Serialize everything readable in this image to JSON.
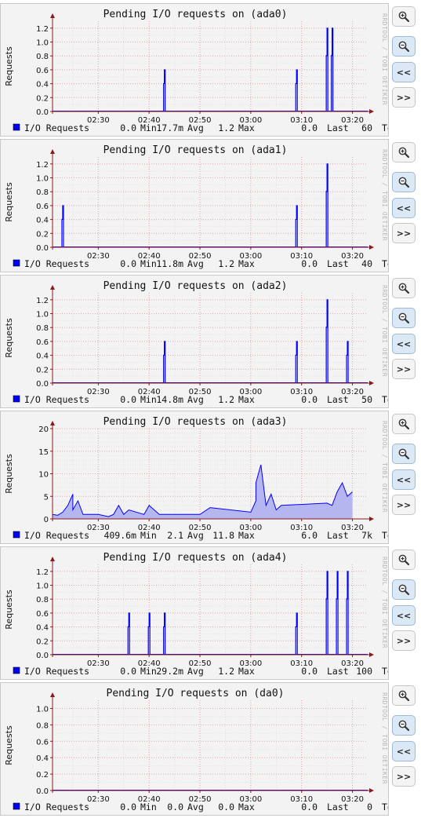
{
  "graphs": [
    {
      "title": "Pending I/O requests on (ada0)",
      "ylabel": "Requests",
      "watermark": "RRDTOOL / TOBI OETIKER",
      "legend_label": "I/O Requests",
      "min": "0.0",
      "avg": "17.7m",
      "max": "1.2",
      "last": "0.0",
      "tail": "60",
      "x_ticks": [
        "02:30",
        "02:40",
        "02:50",
        "03:00",
        "03:10",
        "03:20"
      ],
      "y_ticks": [
        "0.0",
        "0.2",
        "0.4",
        "0.6",
        "0.8",
        "1.0",
        "1.2"
      ],
      "ymax": 1.3
    },
    {
      "title": "Pending I/O requests on (ada1)",
      "ylabel": "Requests",
      "watermark": "RRDTOOL / TOBI OETIKER",
      "legend_label": "I/O Requests",
      "min": "0.0",
      "avg": "11.8m",
      "max": "1.2",
      "last": "0.0",
      "tail": "40",
      "x_ticks": [
        "02:30",
        "02:40",
        "02:50",
        "03:00",
        "03:10",
        "03:20"
      ],
      "y_ticks": [
        "0.0",
        "0.2",
        "0.4",
        "0.6",
        "0.8",
        "1.0",
        "1.2"
      ],
      "ymax": 1.3
    },
    {
      "title": "Pending I/O requests on (ada2)",
      "ylabel": "Requests",
      "watermark": "RRDTOOL / TOBI OETIKER",
      "legend_label": "I/O Requests",
      "min": "0.0",
      "avg": "14.8m",
      "max": "1.2",
      "last": "0.0",
      "tail": "50",
      "x_ticks": [
        "02:30",
        "02:40",
        "02:50",
        "03:00",
        "03:10",
        "03:20"
      ],
      "y_ticks": [
        "0.0",
        "0.2",
        "0.4",
        "0.6",
        "0.8",
        "1.0",
        "1.2"
      ],
      "ymax": 1.3
    },
    {
      "title": "Pending I/O requests on (ada3)",
      "ylabel": "Requests",
      "watermark": "RRDTOOL / TOBI OETIKER",
      "legend_label": "I/O Requests",
      "min": "409.6m",
      "avg": "2.1",
      "max": "11.8",
      "last": "6.0",
      "tail": "7k",
      "x_ticks": [
        "02:30",
        "02:40",
        "02:50",
        "03:00",
        "03:10",
        "03:20"
      ],
      "y_ticks": [
        "0",
        "5",
        "10",
        "15",
        "20"
      ],
      "ymax": 20
    },
    {
      "title": "Pending I/O requests on (ada4)",
      "ylabel": "Requests",
      "watermark": "RRDTOOL / TOBI OETIKER",
      "legend_label": "I/O Requests",
      "min": "0.0",
      "avg": "29.2m",
      "max": "1.2",
      "last": "0.0",
      "tail": "100",
      "x_ticks": [
        "02:30",
        "02:40",
        "02:50",
        "03:00",
        "03:10",
        "03:20"
      ],
      "y_ticks": [
        "0.0",
        "0.2",
        "0.4",
        "0.6",
        "0.8",
        "1.0",
        "1.2"
      ],
      "ymax": 1.3
    },
    {
      "title": "Pending I/O requests on (da0)",
      "ylabel": "Requests",
      "watermark": "RRDTOOL / TOBI OETIKER",
      "legend_label": "I/O Requests",
      "min": "0.0",
      "avg": "0.0",
      "max": "0.0",
      "last": "0.0",
      "tail": "0",
      "x_ticks": [
        "02:30",
        "02:40",
        "02:50",
        "03:00",
        "03:10",
        "03:20"
      ],
      "y_ticks": [
        "0.0",
        "0.2",
        "0.4",
        "0.6",
        "0.8",
        "1.0"
      ],
      "ymax": 1.1
    }
  ],
  "buttons": {
    "zoom_in_icon": "zoom-in-icon",
    "zoom_out_icon": "zoom-out-icon",
    "back": "<<",
    "forward": ">>"
  },
  "colors": {
    "series": "#0000ff",
    "area": "#b5b5f0",
    "grid": "#e8a8a8",
    "axis": "#8b1a1a",
    "bg": "#f3f3f3"
  },
  "chart_data": [
    {
      "type": "line",
      "title": "Pending I/O requests on (ada0)",
      "ylabel": "Requests",
      "ylim": [
        0,
        1.3
      ],
      "xlim": [
        "02:21",
        "03:23"
      ],
      "series": [
        {
          "name": "I/O Requests",
          "x": [
            "02:43",
            "03:09",
            "03:15",
            "03:16"
          ],
          "values": [
            0.6,
            0.6,
            1.2,
            1.2
          ]
        }
      ]
    },
    {
      "type": "line",
      "title": "Pending I/O requests on (ada1)",
      "ylabel": "Requests",
      "ylim": [
        0,
        1.3
      ],
      "xlim": [
        "02:21",
        "03:23"
      ],
      "series": [
        {
          "name": "I/O Requests",
          "x": [
            "02:23",
            "03:09",
            "03:15"
          ],
          "values": [
            0.6,
            0.6,
            1.2
          ]
        }
      ]
    },
    {
      "type": "line",
      "title": "Pending I/O requests on (ada2)",
      "ylabel": "Requests",
      "ylim": [
        0,
        1.3
      ],
      "xlim": [
        "02:21",
        "03:23"
      ],
      "series": [
        {
          "name": "I/O Requests",
          "x": [
            "02:43",
            "03:09",
            "03:15",
            "03:19"
          ],
          "values": [
            0.6,
            0.6,
            1.2,
            0.6
          ]
        }
      ]
    },
    {
      "type": "area",
      "title": "Pending I/O requests on (ada3)",
      "ylabel": "Requests",
      "ylim": [
        0,
        20
      ],
      "xlim": [
        "02:21",
        "03:23"
      ],
      "series": [
        {
          "name": "I/O Requests",
          "x": [
            "02:21",
            "02:22",
            "02:23",
            "02:24",
            "02:25",
            "02:25",
            "02:26",
            "02:27",
            "02:30",
            "02:32",
            "02:33",
            "02:34",
            "02:35",
            "02:36",
            "02:39",
            "02:40",
            "02:42",
            "02:50",
            "02:52",
            "03:00",
            "03:01",
            "03:01",
            "03:02",
            "03:03",
            "03:04",
            "03:05",
            "03:06",
            "03:15",
            "03:16",
            "03:17",
            "03:18",
            "03:19",
            "03:20"
          ],
          "values": [
            1,
            0.8,
            1.5,
            3,
            5.5,
            2,
            4,
            1,
            1,
            0.5,
            1,
            3,
            1,
            2,
            1,
            3,
            1,
            1,
            2.5,
            1.5,
            4,
            8,
            12,
            3,
            5.5,
            2,
            3,
            3.5,
            3,
            6,
            8,
            5,
            6
          ]
        }
      ]
    },
    {
      "type": "line",
      "title": "Pending I/O requests on (ada4)",
      "ylabel": "Requests",
      "ylim": [
        0,
        1.3
      ],
      "xlim": [
        "02:21",
        "03:23"
      ],
      "series": [
        {
          "name": "I/O Requests",
          "x": [
            "02:36",
            "02:40",
            "02:43",
            "03:09",
            "03:15",
            "03:17",
            "03:19"
          ],
          "values": [
            0.6,
            0.6,
            0.6,
            0.6,
            1.2,
            1.2,
            1.2
          ]
        }
      ]
    },
    {
      "type": "line",
      "title": "Pending I/O requests on (da0)",
      "ylabel": "Requests",
      "ylim": [
        0,
        1.1
      ],
      "xlim": [
        "02:21",
        "03:23"
      ],
      "series": [
        {
          "name": "I/O Requests",
          "x": [
            "02:21",
            "03:23"
          ],
          "values": [
            0,
            0
          ]
        }
      ]
    }
  ]
}
